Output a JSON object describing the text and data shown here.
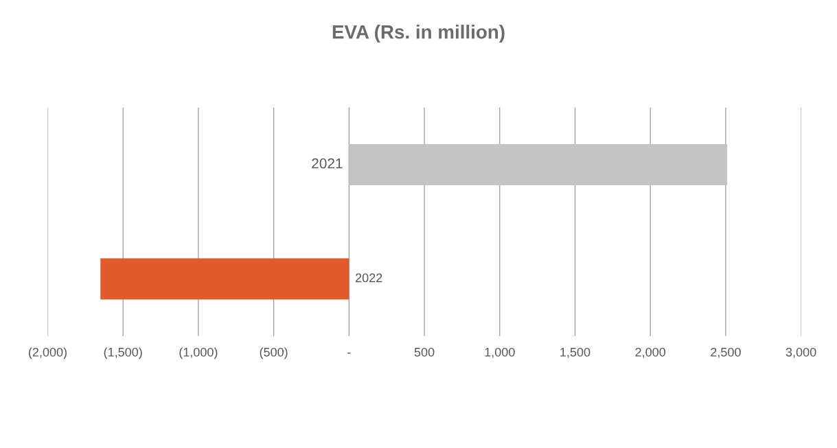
{
  "chart_data": {
    "type": "bar",
    "orientation": "horizontal",
    "title": "EVA (Rs. in million)",
    "categories": [
      "2021",
      "2022"
    ],
    "values": [
      2510,
      -1650
    ],
    "colors": [
      "#c4c4c4",
      "#e2592a"
    ],
    "xlim": [
      -2000,
      3000
    ],
    "xticks": [
      {
        "value": -2000,
        "label": "(2,000)"
      },
      {
        "value": -1500,
        "label": "(1,500)"
      },
      {
        "value": -1000,
        "label": "(1,000)"
      },
      {
        "value": -500,
        "label": "(500)"
      },
      {
        "value": 0,
        "label": "-"
      },
      {
        "value": 500,
        "label": "500"
      },
      {
        "value": 1000,
        "label": "1,000"
      },
      {
        "value": 1500,
        "label": "1,500"
      },
      {
        "value": 2000,
        "label": "2,000"
      },
      {
        "value": 2500,
        "label": "2,500"
      },
      {
        "value": 3000,
        "label": "3,000"
      }
    ],
    "grid": "x",
    "legend": false
  }
}
